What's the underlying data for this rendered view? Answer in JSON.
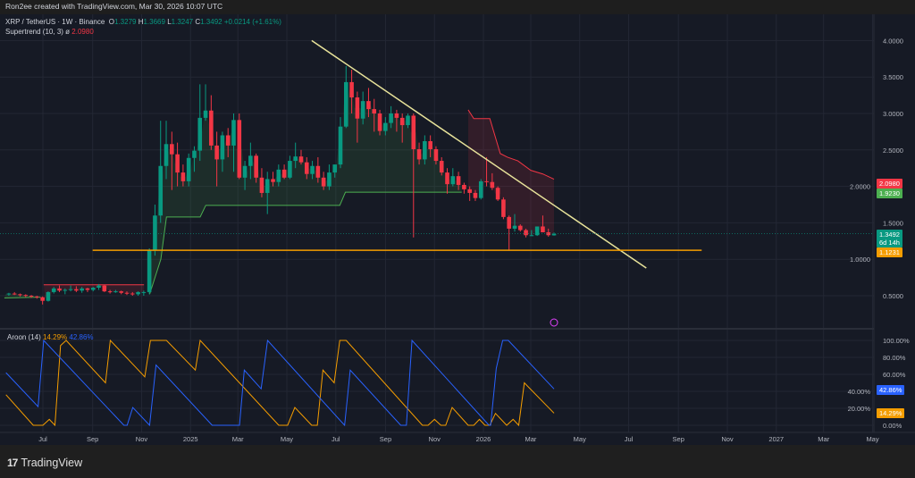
{
  "header": {
    "credit": "Ron2ee created with TradingView.com, Mar 30, 2026 10:07 UTC"
  },
  "legend": {
    "symbol": "XRP / TetherUS · 1W · Binance",
    "o_label": "O",
    "o": "1.3279",
    "h_label": "H",
    "h": "1.3669",
    "l_label": "L",
    "l": "1.3247",
    "c_label": "C",
    "c": "1.3492",
    "change": "+0.0214 (+1.61%)",
    "supertrend_label": "Supertrend (10, 3)",
    "supertrend_symbol": "ø",
    "supertrend_value": "2.0980"
  },
  "aroon_legend": {
    "label": "Aroon (14)",
    "up_value": "14.29%",
    "down_value": "42.86%"
  },
  "price_tags": [
    {
      "text": "2.0980",
      "sub": "",
      "color": "#f23645"
    },
    {
      "text": "1.9230",
      "sub": "",
      "color": "#4caf50"
    },
    {
      "text": "1.3492",
      "sub": "6d 14h",
      "color": "#089981"
    },
    {
      "text": "1.1231",
      "sub": "",
      "color": "#f59d00"
    }
  ],
  "aroon_tags": [
    {
      "text": "42.86%",
      "color": "#2962ff"
    },
    {
      "text": "14.29%",
      "color": "#f59d00"
    }
  ],
  "footer": {
    "brand": "TradingView",
    "brand_mark": "17"
  },
  "colors": {
    "up": "#089981",
    "down": "#f23645",
    "background": "#161a25",
    "supertrend_up": "#4caf50",
    "supertrend_down": "#f23645",
    "trendline": "#e8e39a",
    "support_line": "#f59d00",
    "aroon_up": "#f59d00",
    "aroon_down": "#2962ff"
  },
  "chart_data": [
    {
      "type": "candlestick",
      "title": "XRP / TetherUS · 1W · Binance",
      "interval": "1W",
      "last_bar_date": "2026-03-30",
      "y_axis": {
        "ticks": [
          "0.5000",
          "1.0000",
          "1.5000",
          "2.0000",
          "2.5000",
          "3.0000",
          "3.5000",
          "4.0000"
        ],
        "ylim": [
          0.3,
          4.2
        ]
      },
      "x_axis": {
        "ticks": [
          {
            "label": "Jul",
            "date": "2024-07-01"
          },
          {
            "label": "Sep",
            "date": "2024-09-01"
          },
          {
            "label": "Nov",
            "date": "2024-11-01"
          },
          {
            "label": "2025",
            "date": "2025-01-01"
          },
          {
            "label": "Mar",
            "date": "2025-03-01"
          },
          {
            "label": "May",
            "date": "2025-05-01"
          },
          {
            "label": "Jul",
            "date": "2025-07-01"
          },
          {
            "label": "Sep",
            "date": "2025-09-01"
          },
          {
            "label": "Nov",
            "date": "2025-11-01"
          },
          {
            "label": "2026",
            "date": "2026-01-01"
          },
          {
            "label": "Mar",
            "date": "2026-03-01"
          },
          {
            "label": "May",
            "date": "2026-05-01"
          },
          {
            "label": "Jul",
            "date": "2026-07-01"
          },
          {
            "label": "Sep",
            "date": "2026-09-01"
          },
          {
            "label": "Nov",
            "date": "2026-11-01"
          },
          {
            "label": "2027",
            "date": "2027-01-01"
          },
          {
            "label": "Mar",
            "date": "2027-03-01"
          },
          {
            "label": "May",
            "date": "2027-05-01"
          }
        ]
      },
      "grid": true,
      "candles_ohlc": [
        [
          0.52,
          0.54,
          0.5,
          0.53
        ],
        [
          0.53,
          0.55,
          0.51,
          0.52
        ],
        [
          0.52,
          0.53,
          0.49,
          0.51
        ],
        [
          0.51,
          0.52,
          0.48,
          0.5
        ],
        [
          0.5,
          0.51,
          0.47,
          0.49
        ],
        [
          0.49,
          0.5,
          0.46,
          0.48
        ],
        [
          0.48,
          0.49,
          0.38,
          0.43
        ],
        [
          0.43,
          0.56,
          0.42,
          0.55
        ],
        [
          0.55,
          0.62,
          0.53,
          0.6
        ],
        [
          0.6,
          0.64,
          0.55,
          0.57
        ],
        [
          0.57,
          0.6,
          0.52,
          0.58
        ],
        [
          0.58,
          0.64,
          0.56,
          0.59
        ],
        [
          0.59,
          0.63,
          0.55,
          0.57
        ],
        [
          0.57,
          0.62,
          0.54,
          0.6
        ],
        [
          0.6,
          0.61,
          0.55,
          0.58
        ],
        [
          0.58,
          0.62,
          0.56,
          0.61
        ],
        [
          0.61,
          0.66,
          0.58,
          0.64
        ],
        [
          0.64,
          0.65,
          0.55,
          0.56
        ],
        [
          0.56,
          0.58,
          0.53,
          0.55
        ],
        [
          0.55,
          0.58,
          0.54,
          0.56
        ],
        [
          0.56,
          0.57,
          0.52,
          0.54
        ],
        [
          0.54,
          0.56,
          0.51,
          0.53
        ],
        [
          0.53,
          0.55,
          0.5,
          0.52
        ],
        [
          0.52,
          0.56,
          0.5,
          0.55
        ],
        [
          0.55,
          0.57,
          0.5,
          0.55
        ],
        [
          0.55,
          1.15,
          0.52,
          1.12
        ],
        [
          1.12,
          1.75,
          1.05,
          1.6
        ],
        [
          1.6,
          2.9,
          1.5,
          2.28
        ],
        [
          2.28,
          2.9,
          2.1,
          2.58
        ],
        [
          2.58,
          2.75,
          1.95,
          2.44
        ],
        [
          2.44,
          2.6,
          2.0,
          2.19
        ],
        [
          2.19,
          2.3,
          2.0,
          2.07
        ],
        [
          2.07,
          2.45,
          2.0,
          2.39
        ],
        [
          2.39,
          2.55,
          2.2,
          2.49
        ],
        [
          2.49,
          3.4,
          2.35,
          2.94
        ],
        [
          2.94,
          3.4,
          2.9,
          3.04
        ],
        [
          3.04,
          3.25,
          2.5,
          2.56
        ],
        [
          2.56,
          2.75,
          2.0,
          2.37
        ],
        [
          2.37,
          2.75,
          2.2,
          2.7
        ],
        [
          2.7,
          2.8,
          2.4,
          2.56
        ],
        [
          2.56,
          3.0,
          2.2,
          2.91
        ],
        [
          2.91,
          3.0,
          2.1,
          2.12
        ],
        [
          2.12,
          2.35,
          1.95,
          2.28
        ],
        [
          2.28,
          2.6,
          2.1,
          2.42
        ],
        [
          2.42,
          2.45,
          2.05,
          2.12
        ],
        [
          2.12,
          2.25,
          1.85,
          1.91
        ],
        [
          1.91,
          2.2,
          1.62,
          2.1
        ],
        [
          2.1,
          2.2,
          2.0,
          2.06
        ],
        [
          2.06,
          2.3,
          2.0,
          2.23
        ],
        [
          2.23,
          2.3,
          2.1,
          2.12
        ],
        [
          2.12,
          2.42,
          2.1,
          2.35
        ],
        [
          2.35,
          2.6,
          2.25,
          2.41
        ],
        [
          2.41,
          2.5,
          2.3,
          2.33
        ],
        [
          2.33,
          2.4,
          2.1,
          2.17
        ],
        [
          2.17,
          2.35,
          2.1,
          2.28
        ],
        [
          2.28,
          2.4,
          2.05,
          2.12
        ],
        [
          2.12,
          2.2,
          1.95,
          2.0
        ],
        [
          2.0,
          2.3,
          1.95,
          2.19
        ],
        [
          2.19,
          2.3,
          2.12,
          2.3
        ],
        [
          2.3,
          2.95,
          2.25,
          2.82
        ],
        [
          2.82,
          3.65,
          2.8,
          3.43
        ],
        [
          3.43,
          3.6,
          3.0,
          3.22
        ],
        [
          3.22,
          3.3,
          2.6,
          2.93
        ],
        [
          2.93,
          3.3,
          2.85,
          3.17
        ],
        [
          3.17,
          3.35,
          2.95,
          3.06
        ],
        [
          3.06,
          3.2,
          2.75,
          3.0
        ],
        [
          3.0,
          3.05,
          2.7,
          2.76
        ],
        [
          2.76,
          2.95,
          2.7,
          2.87
        ],
        [
          2.87,
          3.1,
          2.8,
          3.0
        ],
        [
          3.0,
          3.05,
          2.75,
          2.94
        ],
        [
          2.94,
          3.0,
          2.6,
          2.84
        ],
        [
          2.84,
          3.0,
          2.8,
          2.97
        ],
        [
          2.97,
          3.0,
          1.3,
          2.51
        ],
        [
          2.51,
          2.6,
          2.3,
          2.37
        ],
        [
          2.37,
          2.7,
          2.3,
          2.62
        ],
        [
          2.62,
          2.7,
          2.4,
          2.51
        ],
        [
          2.51,
          2.55,
          2.3,
          2.35
        ],
        [
          2.35,
          2.4,
          2.15,
          2.19
        ],
        [
          2.19,
          2.25,
          1.9,
          2.03
        ],
        [
          2.03,
          2.25,
          2.0,
          2.14
        ],
        [
          2.14,
          2.2,
          1.95,
          2.02
        ],
        [
          2.02,
          2.05,
          1.9,
          1.96
        ],
        [
          1.96,
          2.0,
          1.8,
          1.91
        ],
        [
          1.91,
          1.95,
          1.8,
          1.84
        ],
        [
          1.84,
          2.1,
          1.82,
          2.07
        ],
        [
          2.07,
          2.4,
          2.0,
          2.06
        ],
        [
          2.06,
          2.18,
          1.95,
          1.98
        ],
        [
          1.98,
          2.0,
          1.8,
          1.82
        ],
        [
          1.82,
          1.85,
          1.55,
          1.58
        ],
        [
          1.58,
          1.6,
          1.12,
          1.42
        ],
        [
          1.42,
          1.62,
          1.38,
          1.46
        ],
        [
          1.46,
          1.48,
          1.38,
          1.4
        ],
        [
          1.4,
          1.42,
          1.3,
          1.33
        ],
        [
          1.33,
          1.4,
          1.32,
          1.33
        ],
        [
          1.33,
          1.45,
          1.32,
          1.45
        ],
        [
          1.45,
          1.6,
          1.37,
          1.37
        ],
        [
          1.37,
          1.42,
          1.31,
          1.33
        ],
        [
          1.3279,
          1.3669,
          1.3247,
          1.3492
        ]
      ],
      "supertrend": {
        "params": "(10, 3)",
        "segments": [
          {
            "direction": "up",
            "points": [
              [
                "2024-05-14",
                0.47
              ],
              [
                "2024-06-28",
                0.48
              ]
            ]
          },
          {
            "direction": "down",
            "points": [
              [
                "2024-07-02",
                0.65
              ],
              [
                "2024-11-04",
                0.65
              ]
            ]
          },
          {
            "direction": "up",
            "points": [
              [
                "2024-11-11",
                0.52
              ],
              [
                "2024-11-25",
                1.0
              ],
              [
                "2024-12-02",
                1.58
              ],
              [
                "2025-01-13",
                1.58
              ],
              [
                "2025-01-20",
                1.74
              ],
              [
                "2025-07-06",
                1.74
              ],
              [
                "2025-07-13",
                1.92
              ],
              [
                "2025-12-05",
                1.92
              ]
            ]
          },
          {
            "direction": "down",
            "points": [
              [
                "2025-12-13",
                3.05
              ],
              [
                "2025-12-20",
                2.93
              ],
              [
                "2026-01-09",
                2.93
              ],
              [
                "2026-01-22",
                2.45
              ],
              [
                "2026-01-31",
                2.4
              ],
              [
                "2026-02-13",
                2.35
              ],
              [
                "2026-03-01",
                2.22
              ],
              [
                "2026-03-16",
                2.17
              ],
              [
                "2026-03-30",
                2.098
              ]
            ]
          }
        ]
      },
      "trendline": {
        "points": [
          [
            "2025-06-01",
            4.0
          ],
          [
            "2026-07-23",
            0.88
          ]
        ]
      },
      "support_line": {
        "value": 1.1231,
        "from": "2024-09-01",
        "to": "2026-09-30"
      }
    },
    {
      "type": "line",
      "title": "Aroon (14)",
      "y_axis": {
        "ticks": [
          "0.00%",
          "20.00%",
          "40.00%",
          "60.00%",
          "80.00%",
          "100.00%"
        ],
        "ylim": [
          0,
          100
        ]
      },
      "series": [
        {
          "name": "Aroon Up",
          "points": [
            [
              "2024-05-16",
              36
            ],
            [
              "2024-06-19",
              0
            ],
            [
              "2024-07-01",
              0
            ],
            [
              "2024-07-09",
              7
            ],
            [
              "2024-07-16",
              0
            ],
            [
              "2024-07-23",
              94
            ],
            [
              "2024-07-30",
              100
            ],
            [
              "2024-09-17",
              50
            ],
            [
              "2024-09-23",
              100
            ],
            [
              "2024-11-05",
              57
            ],
            [
              "2024-11-12",
              100
            ],
            [
              "2024-12-02",
              100
            ],
            [
              "2025-01-07",
              65
            ],
            [
              "2025-01-13",
              100
            ],
            [
              "2025-04-21",
              0
            ],
            [
              "2025-05-02",
              0
            ],
            [
              "2025-05-11",
              21
            ],
            [
              "2025-06-01",
              0
            ],
            [
              "2025-06-08",
              0
            ],
            [
              "2025-06-15",
              65
            ],
            [
              "2025-06-29",
              50
            ],
            [
              "2025-07-06",
              100
            ],
            [
              "2025-07-14",
              100
            ],
            [
              "2025-10-17",
              0
            ],
            [
              "2025-10-24",
              0
            ],
            [
              "2025-11-01",
              7
            ],
            [
              "2025-11-09",
              0
            ],
            [
              "2025-11-15",
              0
            ],
            [
              "2025-11-23",
              21
            ],
            [
              "2025-12-13",
              0
            ],
            [
              "2025-12-20",
              0
            ],
            [
              "2025-12-27",
              7
            ],
            [
              "2026-01-03",
              0
            ],
            [
              "2026-01-09",
              0
            ],
            [
              "2026-01-16",
              14
            ],
            [
              "2026-01-30",
              0
            ],
            [
              "2026-02-07",
              7
            ],
            [
              "2026-02-14",
              0
            ],
            [
              "2026-02-21",
              50
            ],
            [
              "2026-03-30",
              14.29
            ]
          ]
        },
        {
          "name": "Aroon Down",
          "points": [
            [
              "2024-05-16",
              62
            ],
            [
              "2024-06-25",
              22
            ],
            [
              "2024-07-02",
              100
            ],
            [
              "2024-10-10",
              0
            ],
            [
              "2024-10-14",
              0
            ],
            [
              "2024-10-21",
              21
            ],
            [
              "2024-11-11",
              0
            ],
            [
              "2024-11-19",
              71
            ],
            [
              "2025-01-28",
              0
            ],
            [
              "2025-03-03",
              0
            ],
            [
              "2025-03-09",
              65
            ],
            [
              "2025-03-30",
              43
            ],
            [
              "2025-04-07",
              100
            ],
            [
              "2025-07-12",
              0
            ],
            [
              "2025-07-19",
              65
            ],
            [
              "2025-09-20",
              0
            ],
            [
              "2025-09-27",
              0
            ],
            [
              "2025-10-04",
              100
            ],
            [
              "2026-01-08",
              0
            ],
            [
              "2026-01-10",
              0
            ],
            [
              "2026-01-17",
              67
            ],
            [
              "2026-01-25",
              100
            ],
            [
              "2026-02-01",
              100
            ],
            [
              "2026-03-30",
              42.86
            ]
          ]
        }
      ]
    }
  ]
}
